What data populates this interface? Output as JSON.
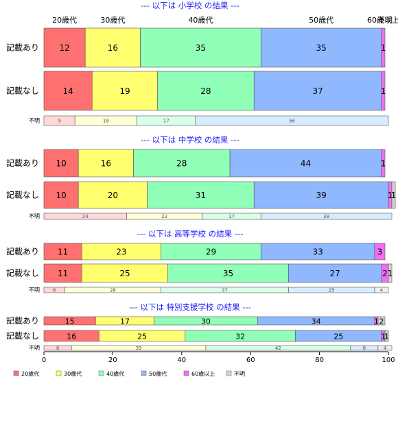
{
  "chart_data": {
    "type": "bar",
    "orientation": "horizontal",
    "stacked": "percent",
    "xlim": [
      0,
      100
    ],
    "xticks": [
      0,
      20,
      40,
      60,
      80,
      100
    ],
    "grid": false,
    "legend_position": "bottom-left",
    "age_groups": [
      "20歳代",
      "30歳代",
      "40歳代",
      "50歳代",
      "60歳以上",
      "不明"
    ],
    "colors": [
      "#ff7070",
      "#ffff70",
      "#90ffb8",
      "#90b8ff",
      "#f070f0",
      "#d3d3d3"
    ],
    "faint_colors": [
      "#ffd8d8",
      "#ffffd8",
      "#d8ffe8",
      "#d8ecff",
      "#ffd8ff",
      "#eeeeee"
    ],
    "top_age_labels": [
      "20歳代",
      "30歳代",
      "40歳代",
      "50歳代",
      "60歳以上",
      "不明"
    ],
    "groups": [
      {
        "title": "--- 以下は 小学校 の結果 ---",
        "rows": [
          {
            "label": "記載あり",
            "values": [
              12,
              16,
              35,
              35,
              1,
              0
            ]
          },
          {
            "label": "記載なし",
            "values": [
              14,
              19,
              28,
              37,
              1,
              0
            ]
          },
          {
            "label": "不明",
            "values": [
              9,
              18,
              17,
              56,
              0,
              0
            ]
          }
        ]
      },
      {
        "title": "--- 以下は 中学校 の結果 ---",
        "rows": [
          {
            "label": "記載あり",
            "values": [
              10,
              16,
              28,
              44,
              1,
              0
            ]
          },
          {
            "label": "記載なし",
            "values": [
              10,
              20,
              31,
              39,
              1,
              1
            ]
          },
          {
            "label": "不明",
            "values": [
              24,
              22,
              17,
              38,
              0,
              0
            ]
          }
        ]
      },
      {
        "title": "--- 以下は 高等学校 の結果 ---",
        "rows": [
          {
            "label": "記載あり",
            "values": [
              11,
              23,
              29,
              33,
              3,
              0
            ]
          },
          {
            "label": "記載なし",
            "values": [
              11,
              25,
              35,
              27,
              2,
              1
            ]
          },
          {
            "label": "不明",
            "values": [
              6,
              28,
              37,
              25,
              0,
              4
            ]
          }
        ]
      },
      {
        "title": "--- 以下は 特別支援学校 の結果 ---",
        "rows": [
          {
            "label": "記載あり",
            "values": [
              15,
              17,
              30,
              34,
              1,
              2
            ]
          },
          {
            "label": "記載なし",
            "values": [
              16,
              25,
              32,
              25,
              1,
              1
            ]
          },
          {
            "label": "不明",
            "values": [
              8,
              39,
              42,
              8,
              0,
              4
            ]
          }
        ]
      }
    ]
  }
}
